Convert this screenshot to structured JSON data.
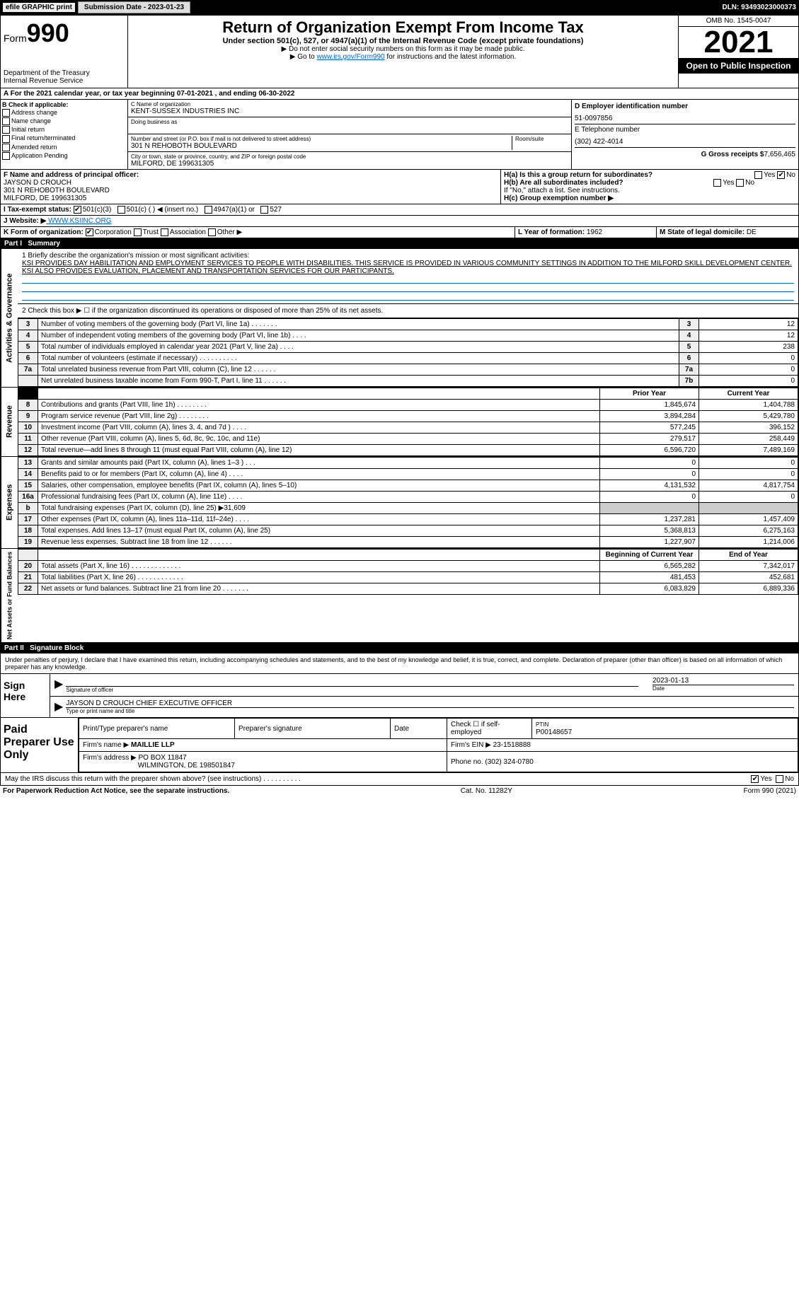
{
  "topbar": {
    "efile": "efile GRAPHIC print",
    "submission": "Submission Date - 2023-01-23",
    "dln": "DLN: 93493023000373"
  },
  "header": {
    "form_prefix": "Form",
    "form_num": "990",
    "title": "Return of Organization Exempt From Income Tax",
    "subtitle": "Under section 501(c), 527, or 4947(a)(1) of the Internal Revenue Code (except private foundations)",
    "warn": "▶ Do not enter social security numbers on this form as it may be made public.",
    "link_pre": "▶ Go to ",
    "link": "www.irs.gov/Form990",
    "link_post": " for instructions and the latest information.",
    "dept": "Department of the Treasury",
    "irs": "Internal Revenue Service",
    "omb": "OMB No. 1545-0047",
    "year": "2021",
    "open": "Open to Public Inspection"
  },
  "a_line": "A For the 2021 calendar year, or tax year beginning 07-01-2021    , and ending 06-30-2022",
  "box_b": {
    "title": "B Check if applicable:",
    "items": [
      "Address change",
      "Name change",
      "Initial return",
      "Final return/terminated",
      "Amended return",
      "Application Pending"
    ]
  },
  "box_c": {
    "c_lbl": "C Name of organization",
    "name": "KENT-SUSSEX INDUSTRIES INC",
    "dba_lbl": "Doing business as",
    "dba": "",
    "addr_lbl": "Number and street (or P.O. box if mail is not delivered to street address)",
    "room_lbl": "Room/suite",
    "addr": "301 N REHOBOTH BOULEVARD",
    "city_lbl": "City or town, state or province, country, and ZIP or foreign postal code",
    "city": "MILFORD, DE  199631305"
  },
  "box_d": {
    "d_lbl": "D Employer identification number",
    "ein": "51-0097856",
    "e_lbl": "E Telephone number",
    "phone": "(302) 422-4014",
    "g_lbl": "G Gross receipts $",
    "g_val": "7,656,465"
  },
  "f": {
    "lbl": "F  Name and address of principal officer:",
    "name": "JAYSON D CROUCH",
    "addr1": "301 N REHOBOTH BOULEVARD",
    "addr2": "MILFORD, DE  199631305"
  },
  "h": {
    "a": "H(a)  Is this a group return for subordinates?",
    "b": "H(b)  Are all subordinates included?",
    "b2": "If \"No,\" attach a list. See instructions.",
    "c": "H(c)  Group exemption number ▶",
    "yes": "Yes",
    "no": "No"
  },
  "i": {
    "lbl": "I   Tax-exempt status:",
    "c3": "501(c)(3)",
    "c": "501(c) (  ) ◀ (insert no.)",
    "a1": "4947(a)(1) or",
    "s527": "527"
  },
  "j": {
    "lbl": "J   Website: ▶",
    "val": " WWW.KSIINC.ORG"
  },
  "k": {
    "lbl": "K Form of organization:",
    "corp": "Corporation",
    "trust": "Trust",
    "assoc": "Association",
    "other": "Other ▶"
  },
  "l": {
    "lbl": "L Year of formation:",
    "val": "1962"
  },
  "m": {
    "lbl": "M State of legal domicile:",
    "val": "DE"
  },
  "part1": {
    "hdr": "Part I",
    "title": "Summary"
  },
  "summary": {
    "q1": "1 Briefly describe the organization's mission or most significant activities:",
    "mission": "KSI PROVIDES DAY HABILITATION AND EMPLOYMENT SERVICES TO PEOPLE WITH DISABILITIES. THIS SERVICE IS PROVIDED IN VARIOUS COMMUNITY SETTINGS IN ADDITION TO THE MILFORD SKILL DEVELOPMENT CENTER. KSI ALSO PROVIDES EVALUATION, PLACEMENT AND TRANSPORTATION SERVICES FOR OUR PARTICIPANTS.",
    "q2": "2  Check this box ▶ ☐  if the organization discontinued its operations or disposed of more than 25% of its net assets.",
    "rows_gov": [
      {
        "n": "3",
        "d": "Number of voting members of the governing body (Part VI, line 1a)   .    .    .    .    .    .    .",
        "c": "3",
        "v": "12"
      },
      {
        "n": "4",
        "d": "Number of independent voting members of the governing body (Part VI, line 1b)   .    .    .    .",
        "c": "4",
        "v": "12"
      },
      {
        "n": "5",
        "d": "Total number of individuals employed in calendar year 2021 (Part V, line 2a)   .    .    .    .",
        "c": "5",
        "v": "238"
      },
      {
        "n": "6",
        "d": "Total number of volunteers (estimate if necessary)   .    .    .    .    .    .    .    .    .    .",
        "c": "6",
        "v": "0"
      },
      {
        "n": "7a",
        "d": "Total unrelated business revenue from Part VIII, column (C), line 12   .    .    .    .    .    .",
        "c": "7a",
        "v": "0"
      },
      {
        "n": "",
        "d": "Net unrelated business taxable income from Form 990-T, Part I, line 11   .    .    .    .    .    .",
        "c": "7b",
        "v": "0"
      }
    ],
    "col_prior": "Prior Year",
    "col_curr": "Current Year",
    "rows_rev": [
      {
        "n": "8",
        "d": "Contributions and grants (Part VIII, line 1h)   .    .    .    .    .    .    .    .",
        "p": "1,845,674",
        "c": "1,404,788"
      },
      {
        "n": "9",
        "d": "Program service revenue (Part VIII, line 2g)   .    .    .    .    .    .    .    .",
        "p": "3,894,284",
        "c": "5,429,780"
      },
      {
        "n": "10",
        "d": "Investment income (Part VIII, column (A), lines 3, 4, and 7d )   .    .    .    .",
        "p": "577,245",
        "c": "396,152"
      },
      {
        "n": "11",
        "d": "Other revenue (Part VIII, column (A), lines 5, 6d, 8c, 9c, 10c, and 11e)",
        "p": "279,517",
        "c": "258,449"
      },
      {
        "n": "12",
        "d": "Total revenue—add lines 8 through 11 (must equal Part VIII, column (A), line 12)",
        "p": "6,596,720",
        "c": "7,489,169"
      }
    ],
    "rows_exp": [
      {
        "n": "13",
        "d": "Grants and similar amounts paid (Part IX, column (A), lines 1–3 )   .    .    .",
        "p": "0",
        "c": "0"
      },
      {
        "n": "14",
        "d": "Benefits paid to or for members (Part IX, column (A), line 4)   .    .    .    .",
        "p": "0",
        "c": "0"
      },
      {
        "n": "15",
        "d": "Salaries, other compensation, employee benefits (Part IX, column (A), lines 5–10)",
        "p": "4,131,532",
        "c": "4,817,754"
      },
      {
        "n": "16a",
        "d": "Professional fundraising fees (Part IX, column (A), line 11e)   .    .    .    .",
        "p": "0",
        "c": "0"
      },
      {
        "n": "b",
        "d": "Total fundraising expenses (Part IX, column (D), line 25) ▶31,609",
        "p": "",
        "c": ""
      },
      {
        "n": "17",
        "d": "Other expenses (Part IX, column (A), lines 11a–11d, 11f–24e)   .    .    .    .",
        "p": "1,237,281",
        "c": "1,457,409"
      },
      {
        "n": "18",
        "d": "Total expenses. Add lines 13–17 (must equal Part IX, column (A), line 25)",
        "p": "5,368,813",
        "c": "6,275,163"
      },
      {
        "n": "19",
        "d": "Revenue less expenses. Subtract line 18 from line 12   .    .    .    .    .    .",
        "p": "1,227,907",
        "c": "1,214,006"
      }
    ],
    "col_beg": "Beginning of Current Year",
    "col_end": "End of Year",
    "rows_net": [
      {
        "n": "20",
        "d": "Total assets (Part X, line 16)   .    .    .    .    .    .    .    .    .    .    .    .    .",
        "p": "6,565,282",
        "c": "7,342,017"
      },
      {
        "n": "21",
        "d": "Total liabilities (Part X, line 26)   .    .    .    .    .    .    .    .    .    .    .    .",
        "p": "481,453",
        "c": "452,681"
      },
      {
        "n": "22",
        "d": "Net assets or fund balances. Subtract line 21 from line 20   .    .    .    .    .    .    .",
        "p": "6,083,829",
        "c": "6,889,336"
      }
    ],
    "side_gov": "Activities & Governance",
    "side_rev": "Revenue",
    "side_exp": "Expenses",
    "side_net": "Net Assets or Fund Balances"
  },
  "part2": {
    "hdr": "Part II",
    "title": "Signature Block"
  },
  "sign": {
    "decl": "Under penalties of perjury, I declare that I have examined this return, including accompanying schedules and statements, and to the best of my knowledge and belief, it is true, correct, and complete. Declaration of preparer (other than officer) is based on all information of which preparer has any knowledge.",
    "here": "Sign Here",
    "sig_lbl": "Signature of officer",
    "date_lbl": "Date",
    "date": "2023-01-13",
    "name": "JAYSON D CROUCH  CHIEF EXECUTIVE OFFICER",
    "name_lbl": "Type or print name and title"
  },
  "prep": {
    "lbl": "Paid Preparer Use Only",
    "h1": "Print/Type preparer's name",
    "h2": "Preparer's signature",
    "h3": "Date",
    "h4_a": "Check ☐ if self-employed",
    "h4_b": "PTIN",
    "ptin": "P00148657",
    "firm_lbl": "Firm's name    ▶",
    "firm": "MAILLIE LLP",
    "ein_lbl": "Firm's EIN ▶",
    "ein": "23-1518888",
    "addr_lbl": "Firm's address ▶",
    "addr1": "PO BOX 11847",
    "addr2": "WILMINGTON, DE  198501847",
    "phone_lbl": "Phone no.",
    "phone": "(302) 324-0780"
  },
  "may": {
    "q": "May the IRS discuss this return with the preparer shown above? (see instructions)   .    .    .    .    .    .    .    .    .    .",
    "yes": "Yes",
    "no": "No"
  },
  "footer": {
    "pra": "For Paperwork Reduction Act Notice, see the separate instructions.",
    "cat": "Cat. No. 11282Y",
    "form": "Form 990 (2021)"
  }
}
